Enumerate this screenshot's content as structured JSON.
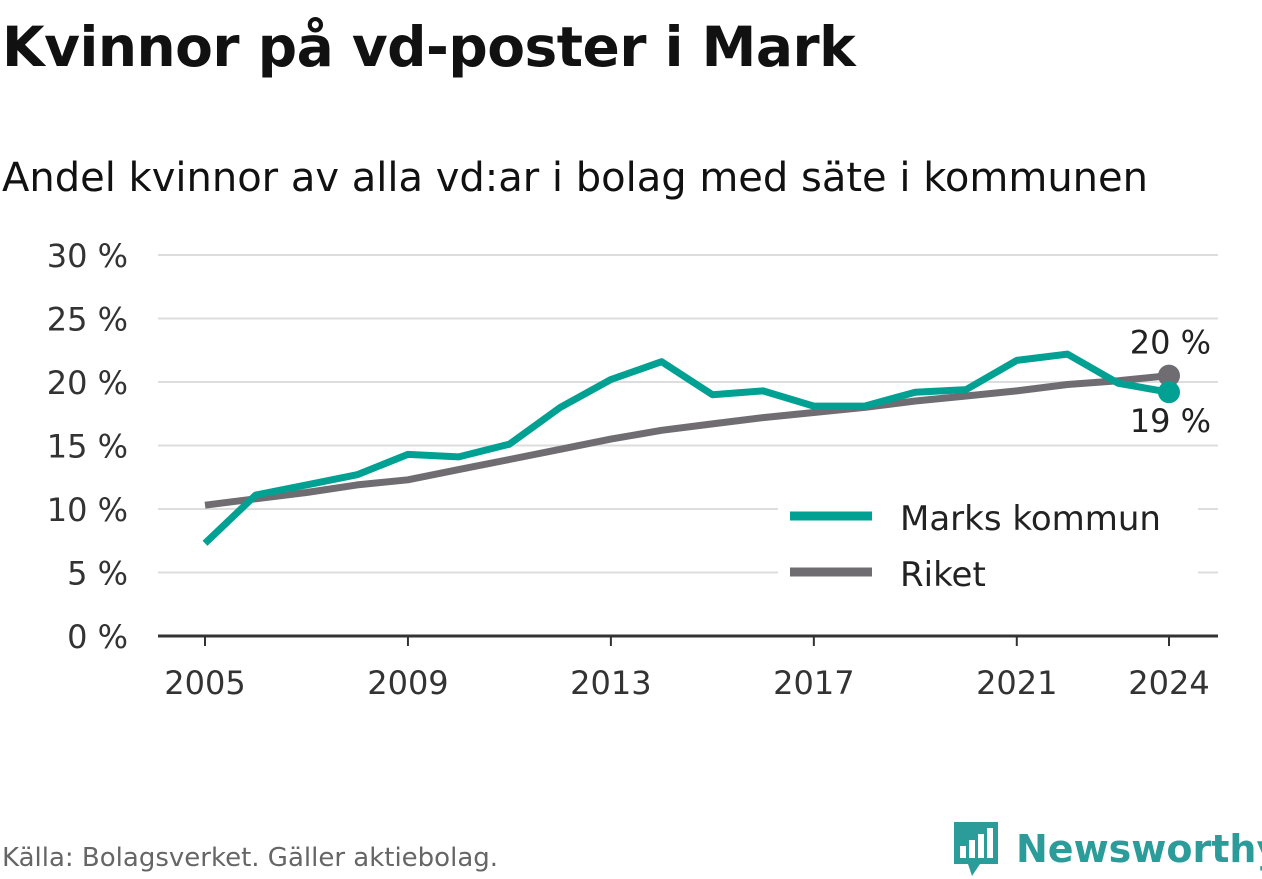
{
  "title": "Kvinnor på vd-poster i Mark",
  "subtitle": "Andel kvinnor av alla vd:ar i bolag med säte i kommunen",
  "source": "Källa: Bolagsverket. Gäller aktiebolag.",
  "brand": {
    "name": "Newsworthy",
    "icon": "bar-chart-badge-icon",
    "color": "#2b9c9a"
  },
  "chart_data": {
    "type": "line",
    "x": [
      2005,
      2006,
      2007,
      2008,
      2009,
      2010,
      2011,
      2012,
      2013,
      2014,
      2015,
      2016,
      2017,
      2018,
      2019,
      2020,
      2021,
      2022,
      2023,
      2024
    ],
    "x_ticks": [
      "2005",
      "2009",
      "2013",
      "2017",
      "2021",
      "2024"
    ],
    "x_tick_values": [
      2005,
      2009,
      2013,
      2017,
      2021,
      2024
    ],
    "y_ticks": [
      "0 %",
      "5 %",
      "10 %",
      "15 %",
      "20 %",
      "25 %",
      "30 %"
    ],
    "y_tick_values": [
      0,
      5,
      10,
      15,
      20,
      25,
      30
    ],
    "ylim": [
      0,
      30
    ],
    "xlim": [
      2004,
      2025
    ],
    "grid": true,
    "legend_position": "bottom-right",
    "series": [
      {
        "name": "Marks kommun",
        "color": "#00a193",
        "values": [
          7.3,
          11.1,
          11.9,
          12.7,
          14.3,
          14.1,
          15.1,
          18.0,
          20.2,
          21.6,
          19.0,
          19.3,
          18.1,
          18.1,
          19.2,
          19.4,
          21.7,
          22.2,
          19.9,
          19.2
        ],
        "end_label": "19 %"
      },
      {
        "name": "Riket",
        "color": "#6f6d72",
        "values": [
          10.3,
          10.8,
          11.3,
          11.9,
          12.3,
          13.1,
          13.9,
          14.7,
          15.5,
          16.2,
          16.7,
          17.2,
          17.6,
          18.0,
          18.5,
          18.9,
          19.3,
          19.8,
          20.1,
          20.5
        ],
        "end_label": "20 %"
      }
    ]
  }
}
